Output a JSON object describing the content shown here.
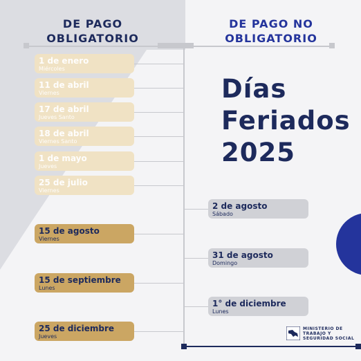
{
  "heading_left": [
    "DE PAGO",
    "OBLIGATORIO"
  ],
  "heading_right": [
    "DE PAGO NO",
    "OBLIGATORIO"
  ],
  "main_title": [
    "Días",
    "Feriados",
    "2025"
  ],
  "holidays_left": [
    {
      "date": "1 de enero",
      "day": "Miércoles",
      "style": "pale"
    },
    {
      "date": "11 de abril",
      "day": "Viernes",
      "style": "pale"
    },
    {
      "date": "17 de abril",
      "day": "Jueves Santo",
      "style": "pale"
    },
    {
      "date": "18 de abril",
      "day": "Viernes Santo",
      "style": "pale"
    },
    {
      "date": "1 de mayo",
      "day": "Jueves",
      "style": "pale"
    },
    {
      "date": "25 de julio",
      "day": "Viernes",
      "style": "pale"
    },
    {
      "date": "15 de agosto",
      "day": "Viernes",
      "style": "gold"
    },
    {
      "date": "15 de septiembre",
      "day": "Lunes",
      "style": "gold"
    },
    {
      "date": "25 de diciembre",
      "day": "Jueves",
      "style": "gold"
    }
  ],
  "holidays_right": [
    {
      "date": "2 de agosto",
      "day": "Sábado"
    },
    {
      "date": "31 de agosto",
      "day": "Domingo"
    },
    {
      "date": "1° de diciembre",
      "day": "Lunes"
    }
  ],
  "ministry": [
    "MINISTERIO DE",
    "TRABAJO Y",
    "SEGURIDAD SOCIAL"
  ],
  "colors": {
    "navy": "#1d2a5c",
    "gold": "#cba663",
    "pale_gold": "#f0e2c4",
    "gray": "#d0d1d6",
    "blue": "#24349c"
  }
}
